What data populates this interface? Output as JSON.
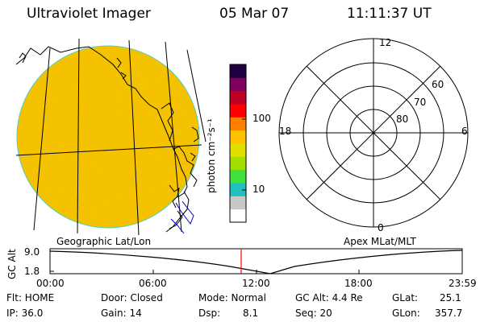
{
  "header": {
    "title": "Ultraviolet Imager",
    "date": "05 Mar 07",
    "time": "11:11:37 UT"
  },
  "colorbar": {
    "unit_label": "photon cm⁻²s⁻¹",
    "ticks": [
      "100",
      "10"
    ],
    "colors": [
      "#ffffff",
      "#c8c8c8",
      "#20c0c0",
      "#40e040",
      "#a0e000",
      "#e0e000",
      "#ffc000",
      "#ff8000",
      "#ff0000",
      "#c00020",
      "#800060",
      "#200040"
    ]
  },
  "geo_panel": {
    "caption": "Geographic Lat/Lon",
    "image_color": "#f2c200"
  },
  "polar_panel": {
    "caption": "Apex MLat/MLT",
    "mlt_labels": [
      "12",
      "18",
      "6",
      "0"
    ],
    "mlat_labels": [
      "60",
      "70",
      "80"
    ]
  },
  "altitude_plot": {
    "ylabel": "GC Alt",
    "yticks": [
      "9.0",
      "1.8"
    ],
    "xticks": [
      "00:00",
      "06:00",
      "12:00",
      "18:00",
      "23:59"
    ],
    "cursor_color": "#ff0000"
  },
  "status": {
    "flt": "Flt: HOME",
    "ip": "IP: 36.0",
    "door": "Door: Closed",
    "gain": "Gain: 14",
    "mode": "Mode: Normal",
    "dsp_label": "Dsp:",
    "dsp_value": "8.1",
    "gc_alt": "GC Alt: 4.4 Re",
    "seq": "Seq: 20",
    "glat_label": "GLat:",
    "glat_value": "25.1",
    "glon_label": "GLon:",
    "glon_value": "357.7"
  }
}
